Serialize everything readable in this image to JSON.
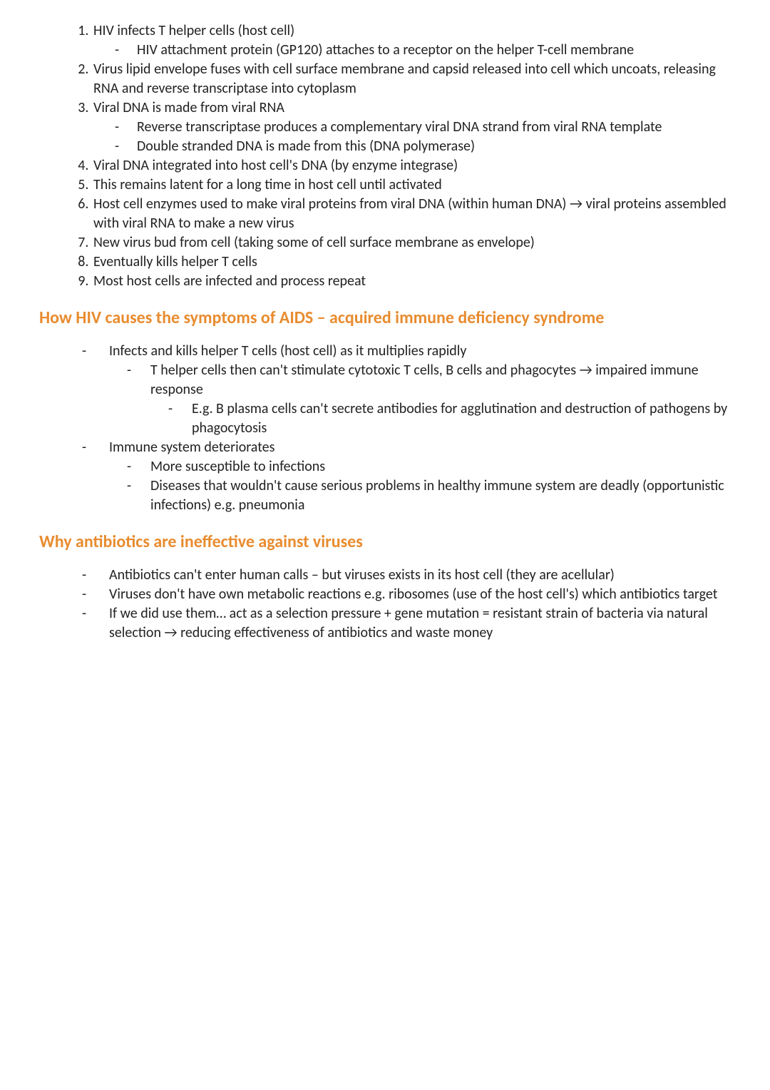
{
  "colors": {
    "text": "#222222",
    "heading": "#e88c30",
    "background": "#ffffff"
  },
  "typography": {
    "body_fontsize": 20,
    "heading_fontsize": 24,
    "heading_weight": 700,
    "font_family": "Segoe UI / Calibri"
  },
  "ordered": {
    "1": {
      "text": "HIV infects T helper cells (host cell)",
      "sub": [
        "HIV attachment protein (GP120) attaches to a receptor on the helper T-cell membrane"
      ]
    },
    "2": {
      "text": "Virus lipid envelope fuses with cell surface membrane and capsid released into cell which uncoats, releasing RNA and reverse transcriptase into cytoplasm"
    },
    "3": {
      "text": "Viral DNA is made from viral RNA",
      "sub": [
        "Reverse transcriptase produces a complementary viral DNA strand from viral RNA template",
        "Double stranded DNA is made from this (DNA polymerase)"
      ]
    },
    "4": {
      "text": "Viral DNA integrated into host cell's DNA (by enzyme integrase)"
    },
    "5": {
      "text": "This remains latent for a long time in host cell until activated"
    },
    "6": {
      "text": "Host cell enzymes used to make viral proteins from viral DNA (within human DNA) → viral proteins assembled with viral RNA to make a new virus"
    },
    "7": {
      "text": "New virus bud from cell (taking some of cell surface membrane as envelope)"
    },
    "8": {
      "text": "Eventually kills helper T cells"
    },
    "9": {
      "text": "Most host cells are infected and process repeat"
    }
  },
  "heading1": "How HIV causes the symptoms of AIDS – acquired immune deficiency syndrome",
  "section1": {
    "b1": {
      "text": "Infects and kills helper T cells (host cell) as it multiplies rapidly",
      "sub": {
        "s1": {
          "text": "T helper cells then can't stimulate cytotoxic T cells, B cells and phagocytes → impaired immune response",
          "sub": [
            "E.g. B plasma cells can't secrete antibodies for agglutination and destruction of pathogens by phagocytosis"
          ]
        }
      }
    },
    "b2": {
      "text": "Immune system deteriorates",
      "sub": [
        "More susceptible to infections",
        "Diseases that wouldn't cause serious problems in healthy immune system are deadly (opportunistic infections) e.g. pneumonia"
      ]
    }
  },
  "heading2": "Why antibiotics are ineffective against viruses",
  "section2": [
    "Antibiotics can't enter human calls – but viruses exists in its host cell (they are acellular)",
    "Viruses don't have own metabolic reactions e.g. ribosomes (use of the host cell's) which antibiotics target",
    "If we did use them… act as a selection pressure + gene mutation = resistant strain of bacteria via natural selection → reducing effectiveness of antibiotics and waste money"
  ]
}
